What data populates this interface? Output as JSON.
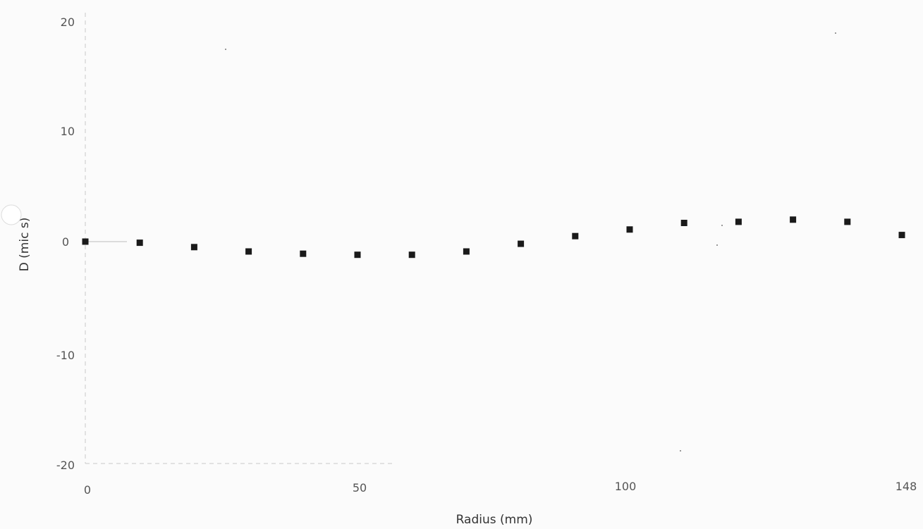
{
  "chart_data": {
    "type": "scatter",
    "title": "",
    "xlabel": "Radius (mm)",
    "ylabel": "D (mic s)",
    "xlim": [
      0,
      148
    ],
    "ylim": [
      -20,
      20
    ],
    "x_ticks": [
      "0",
      "50",
      "100",
      "148"
    ],
    "y_ticks": [
      "20",
      "10",
      "0",
      "-10",
      "-20"
    ],
    "grid": false,
    "legend": "none",
    "marker": "square",
    "marker_color": "#1a1a1a",
    "series": [
      {
        "x": [
          0,
          10,
          20,
          30,
          40,
          50,
          60,
          70,
          80,
          90,
          100,
          110,
          120,
          130,
          140,
          150
        ],
        "y": [
          0.0,
          -0.1,
          -0.5,
          -0.9,
          -1.1,
          -1.2,
          -1.2,
          -0.9,
          -0.2,
          0.5,
          1.1,
          1.7,
          1.8,
          2.0,
          1.8,
          0.6
        ]
      }
    ]
  }
}
